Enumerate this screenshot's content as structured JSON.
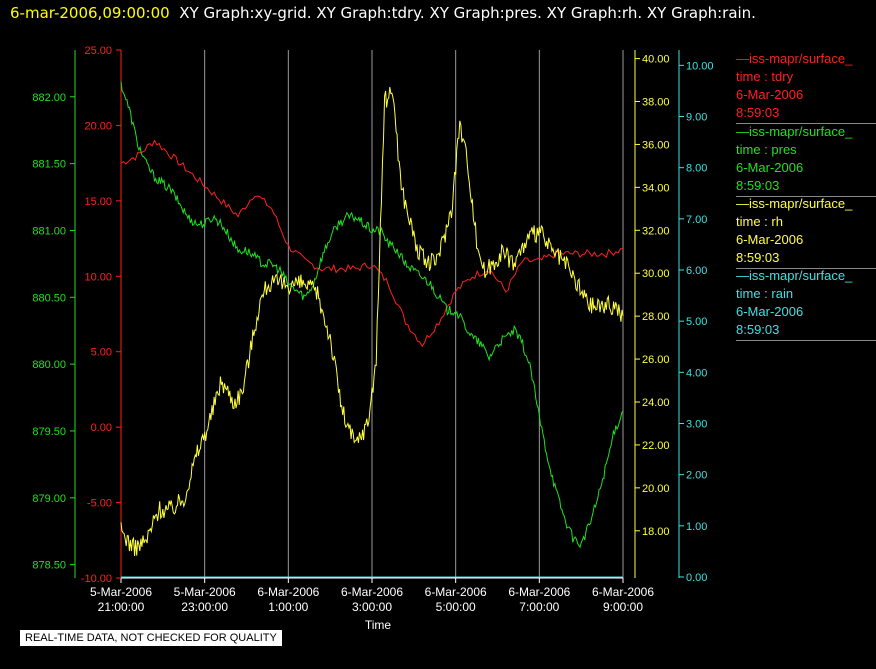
{
  "header": {
    "timestamp": "6-mar-2006,09:00:00",
    "graphs": "XY Graph:xy-grid.  XY Graph:tdry.  XY Graph:pres.  XY Graph:rh.  XY Graph:rain."
  },
  "legend": [
    {
      "line": "—iss-mapr/surface_",
      "var": "time : tdry",
      "date": "6-Mar-2006",
      "time": "8:59:03",
      "color": "#ff2020"
    },
    {
      "line": "—iss-mapr/surface_",
      "var": "time : pres",
      "date": "6-Mar-2006",
      "time": "8:59:03",
      "color": "#20e020"
    },
    {
      "line": "—iss-mapr/surface_",
      "var": "time : rh",
      "date": "6-Mar-2006",
      "time": "8:59:03",
      "color": "#ffff40"
    },
    {
      "line": "—iss-mapr/surface_",
      "var": "time : rain",
      "date": "6-Mar-2006",
      "time": "8:59:03",
      "color": "#40e0e0"
    }
  ],
  "footer_note": "REAL-TIME DATA, NOT CHECKED FOR QUALITY",
  "chart_data": {
    "type": "line",
    "xlabel": "Time",
    "x_range_hours": [
      -3,
      9
    ],
    "x_ticks": [
      {
        "h": -3,
        "l1": "5-Mar-2006",
        "l2": "21:00:00"
      },
      {
        "h": -1,
        "l1": "5-Mar-2006",
        "l2": "23:00:00"
      },
      {
        "h": 1,
        "l1": "6-Mar-2006",
        "l2": "1:00:00"
      },
      {
        "h": 3,
        "l1": "6-Mar-2006",
        "l2": "3:00:00"
      },
      {
        "h": 5,
        "l1": "6-Mar-2006",
        "l2": "5:00:00"
      },
      {
        "h": 7,
        "l1": "6-Mar-2006",
        "l2": "7:00:00"
      },
      {
        "h": 9,
        "l1": "6-Mar-2006",
        "l2": "9:00:00"
      }
    ],
    "grid": "vertical",
    "series": [
      {
        "key": "tdry",
        "color": "#ff2020",
        "axis": "tdry",
        "x": [
          -3,
          -2.6,
          -2.2,
          -1.8,
          -1.4,
          -1,
          -0.6,
          -0.2,
          0.2,
          0.6,
          1,
          1.4,
          1.8,
          2.2,
          2.6,
          3,
          3.4,
          3.8,
          4.2,
          4.6,
          5,
          5.4,
          5.8,
          6.2,
          6.6,
          7,
          7.4,
          7.8,
          8.2,
          8.6,
          9
        ],
        "y": [
          17.5,
          18,
          19,
          18,
          17,
          16,
          15,
          14,
          15.5,
          14.5,
          12,
          11,
          10.5,
          10.5,
          10.5,
          10.8,
          9.5,
          7,
          5.5,
          7,
          9,
          10,
          10.5,
          9,
          11,
          11,
          11.5,
          11.5,
          11.5,
          11.5,
          11.8
        ]
      },
      {
        "key": "pres",
        "color": "#20e020",
        "axis": "pres",
        "x": [
          -3,
          -2.8,
          -2.6,
          -2.4,
          -2.2,
          -2,
          -1.8,
          -1.6,
          -1.4,
          -1.2,
          -1,
          -0.8,
          -0.6,
          -0.4,
          -0.2,
          0,
          0.2,
          0.4,
          0.6,
          0.8,
          1,
          1.2,
          1.4,
          1.6,
          1.8,
          2,
          2.2,
          2.4,
          2.6,
          2.8,
          3,
          3.2,
          3.4,
          3.6,
          3.8,
          4,
          4.2,
          4.4,
          4.6,
          4.8,
          5,
          5.2,
          5.4,
          5.6,
          5.8,
          6,
          6.2,
          6.4,
          6.6,
          6.8,
          7,
          7.2,
          7.4,
          7.6,
          7.8,
          8,
          8.2,
          8.4,
          8.6,
          8.8,
          9
        ],
        "y": [
          882.1,
          881.9,
          881.65,
          881.5,
          881.4,
          881.35,
          881.3,
          881.2,
          881.1,
          881.05,
          881.05,
          881.1,
          881.05,
          880.95,
          880.85,
          880.85,
          880.8,
          880.75,
          880.75,
          880.7,
          880.6,
          880.55,
          880.5,
          880.6,
          880.8,
          880.95,
          881.05,
          881.1,
          881.1,
          881.05,
          881,
          881,
          880.9,
          880.85,
          880.75,
          880.7,
          880.65,
          880.6,
          880.5,
          880.4,
          880.4,
          880.3,
          880.2,
          880.15,
          880.05,
          880.15,
          880.2,
          880.25,
          880.15,
          879.95,
          879.6,
          879.3,
          879.05,
          878.85,
          878.7,
          878.65,
          878.8,
          879,
          879.25,
          879.5,
          879.65
        ]
      },
      {
        "key": "rh",
        "color": "#ffff40",
        "axis": "rh",
        "x": [
          -3,
          -2.7,
          -2.4,
          -2.1,
          -1.8,
          -1.5,
          -1.2,
          -0.9,
          -0.6,
          -0.3,
          -0.1,
          0.1,
          0.3,
          0.5,
          0.8,
          1.1,
          1.4,
          1.7,
          2,
          2.3,
          2.6,
          2.9,
          3.1,
          3.3,
          3.5,
          3.7,
          3.9,
          4.1,
          4.3,
          4.5,
          4.7,
          4.9,
          5.1,
          5.3,
          5.5,
          5.7,
          5.9,
          6.1,
          6.4,
          6.7,
          7,
          7.3,
          7.6,
          7.9,
          8.2,
          8.5,
          8.8,
          9
        ],
        "y": [
          18,
          17.2,
          17.5,
          19,
          19,
          19.5,
          21.5,
          23,
          25,
          24,
          24.5,
          26.5,
          28.5,
          29.5,
          29.5,
          29.5,
          29.5,
          29,
          27,
          23.5,
          22,
          23,
          26,
          38,
          38.5,
          34,
          32.5,
          31,
          30.5,
          30.5,
          31.5,
          33,
          37,
          35,
          31.5,
          30,
          30.5,
          31,
          30.5,
          31.5,
          32,
          31,
          30.5,
          29.5,
          28.5,
          28.5,
          28.5,
          28
        ]
      },
      {
        "key": "rain",
        "color": "#40e0e0",
        "axis": "rain",
        "x": [
          -3,
          9
        ],
        "y": [
          0,
          0
        ]
      }
    ],
    "axes": {
      "tdry": {
        "color": "#ff2020",
        "min": -10,
        "max": 25,
        "ticks": [
          "-10.00",
          "-5.00",
          "0.00",
          "5.00",
          "10.00",
          "15.00",
          "20.00",
          "25.00"
        ],
        "tick_values": [
          -10,
          -5,
          0,
          5,
          10,
          15,
          20,
          25
        ]
      },
      "pres": {
        "color": "#20e020",
        "min": 878.4,
        "max": 882.35,
        "ticks": [
          "878.50",
          "879.00",
          "879.50",
          "880.00",
          "880.50",
          "881.00",
          "881.50",
          "882.00"
        ],
        "tick_values": [
          878.5,
          879,
          879.5,
          880,
          880.5,
          881,
          881.5,
          882
        ]
      },
      "rh": {
        "color": "#ffff40",
        "min": 15.8,
        "max": 40.4,
        "ticks": [
          "18.00",
          "20.00",
          "22.00",
          "24.00",
          "26.00",
          "28.00",
          "30.00",
          "32.00",
          "34.00",
          "36.00",
          "38.00",
          "40.00"
        ],
        "tick_values": [
          18,
          20,
          22,
          24,
          26,
          28,
          30,
          32,
          34,
          36,
          38,
          40
        ]
      },
      "rain": {
        "color": "#40e0e0",
        "min": -0.02,
        "max": 10.3,
        "ticks": [
          "0.00",
          "1.00",
          "2.00",
          "3.00",
          "4.00",
          "5.00",
          "6.00",
          "7.00",
          "8.00",
          "9.00",
          "10.00"
        ],
        "tick_values": [
          0,
          1,
          2,
          3,
          4,
          5,
          6,
          7,
          8,
          9,
          10
        ]
      }
    }
  }
}
